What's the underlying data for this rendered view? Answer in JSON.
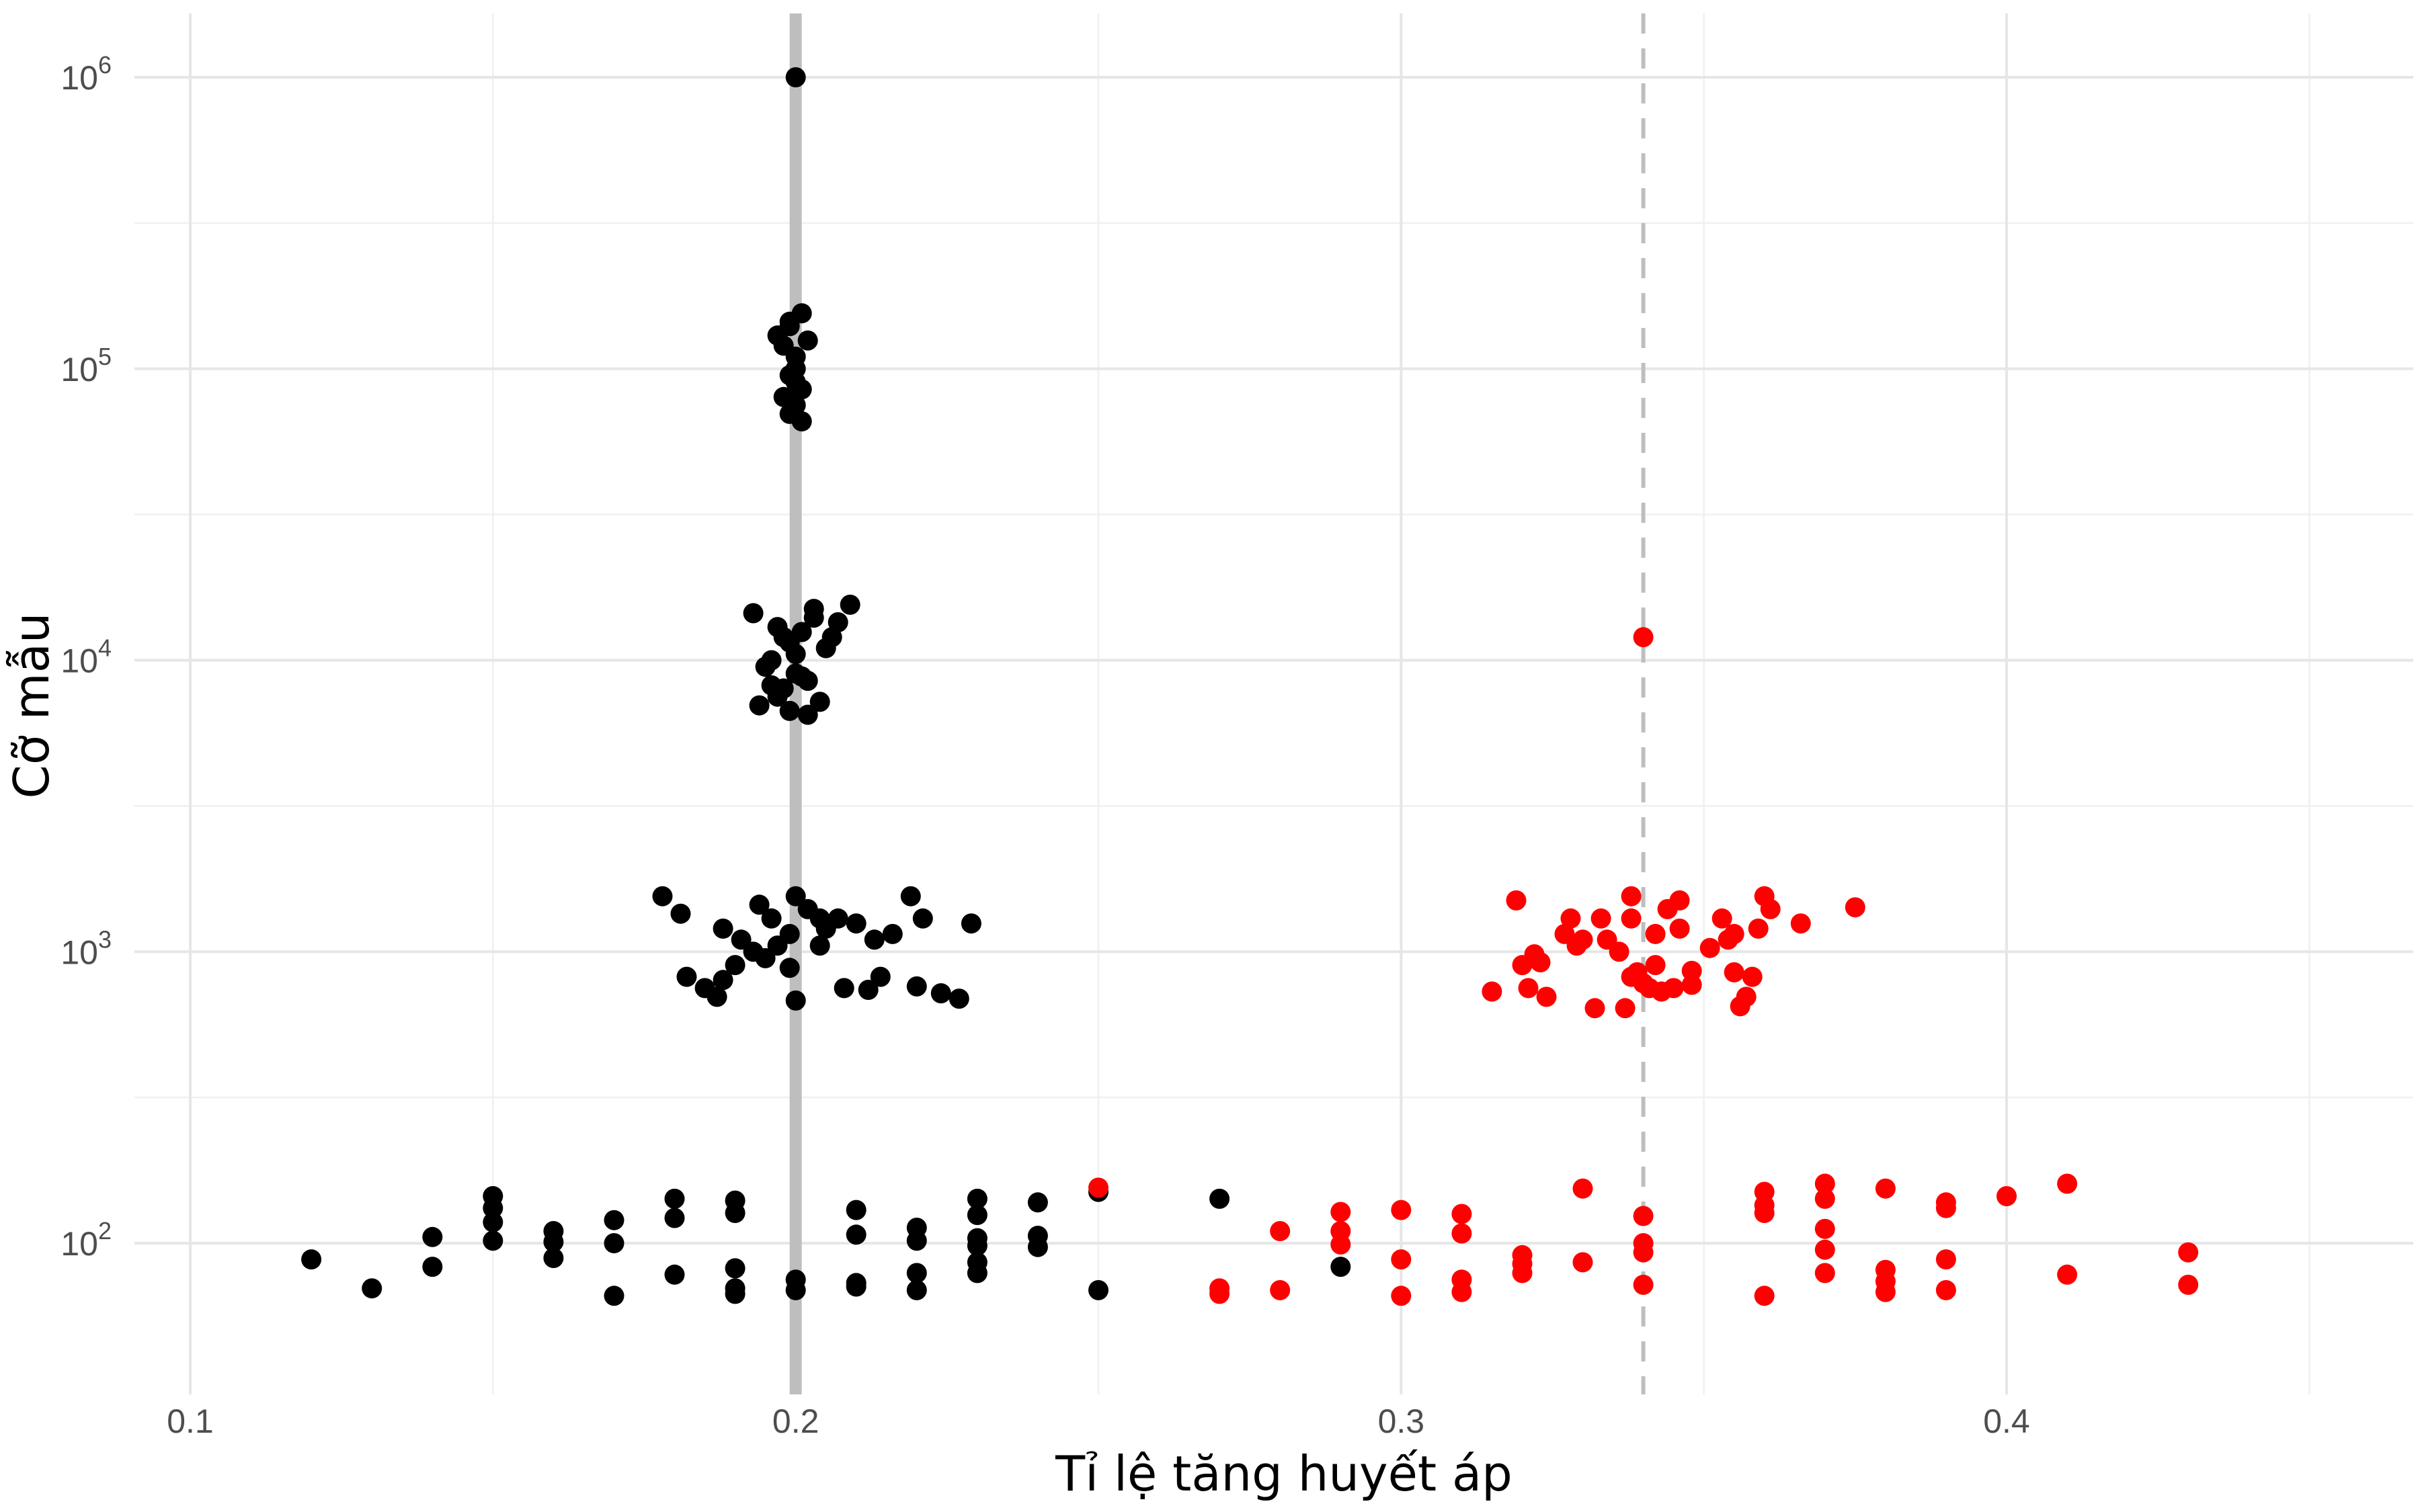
{
  "chart_data": {
    "type": "scatter",
    "title": "",
    "xlabel": "Tỉ lệ tăng huyết áp",
    "ylabel": "Cỡ mẫu",
    "x_range": [
      0.095,
      0.465
    ],
    "y_range_log10": [
      1.5,
      6.3
    ],
    "y_scale": "log10",
    "grid": true,
    "legend": "none",
    "x_ticks": [
      0.1,
      0.2,
      0.3,
      0.4
    ],
    "x_tick_labels": [
      "0.1",
      "0.2",
      "0.3",
      "0.4"
    ],
    "y_ticks": [
      {
        "base": "10",
        "exp": "2",
        "value": 100
      },
      {
        "base": "10",
        "exp": "3",
        "value": 1000
      },
      {
        "base": "10",
        "exp": "4",
        "value": 10000
      },
      {
        "base": "10",
        "exp": "5",
        "value": 100000
      },
      {
        "base": "10",
        "exp": "6",
        "value": 1000000
      }
    ],
    "reference_lines": [
      {
        "x": 0.2,
        "style": "solid",
        "color": "#bebebe"
      },
      {
        "x": 0.34,
        "style": "dashed",
        "color": "#bebebe"
      }
    ],
    "colors": {
      "black_series": "#000000",
      "red_series": "#ff0000"
    },
    "series": [
      {
        "color": "black",
        "points": [
          [
            0.2,
            1000000
          ],
          [
            0.197,
            130000
          ],
          [
            0.199,
            145000
          ],
          [
            0.201,
            155000
          ],
          [
            0.198,
            120000
          ],
          [
            0.2,
            110000
          ],
          [
            0.199,
            95000
          ],
          [
            0.2,
            90000
          ],
          [
            0.201,
            85000
          ],
          [
            0.198,
            80000
          ],
          [
            0.2,
            75000
          ],
          [
            0.199,
            70000
          ],
          [
            0.201,
            66000
          ],
          [
            0.2,
            100000
          ],
          [
            0.202,
            125000
          ],
          [
            0.199,
            140000
          ],
          [
            0.195,
            9500
          ],
          [
            0.198,
            12000
          ],
          [
            0.2,
            10500
          ],
          [
            0.203,
            14000
          ],
          [
            0.205,
            11000
          ],
          [
            0.193,
            14500
          ],
          [
            0.197,
            13000
          ],
          [
            0.201,
            12500
          ],
          [
            0.199,
            11500
          ],
          [
            0.196,
            10000
          ],
          [
            0.194,
            7000
          ],
          [
            0.197,
            7500
          ],
          [
            0.199,
            6700
          ],
          [
            0.202,
            6500
          ],
          [
            0.204,
            7200
          ],
          [
            0.2,
            9000
          ],
          [
            0.202,
            8500
          ],
          [
            0.198,
            8000
          ],
          [
            0.207,
            13500
          ],
          [
            0.209,
            15500
          ],
          [
            0.203,
            15000
          ],
          [
            0.206,
            12000
          ],
          [
            0.201,
            8800
          ],
          [
            0.196,
            8200
          ],
          [
            0.178,
            1550
          ],
          [
            0.181,
            1350
          ],
          [
            0.188,
            1200
          ],
          [
            0.191,
            1100
          ],
          [
            0.193,
            1000
          ],
          [
            0.195,
            950
          ],
          [
            0.197,
            1050
          ],
          [
            0.199,
            1150
          ],
          [
            0.2,
            1550
          ],
          [
            0.202,
            1400
          ],
          [
            0.204,
            1300
          ],
          [
            0.205,
            1200
          ],
          [
            0.207,
            1300
          ],
          [
            0.21,
            1250
          ],
          [
            0.213,
            1100
          ],
          [
            0.216,
            1150
          ],
          [
            0.219,
            1550
          ],
          [
            0.221,
            1300
          ],
          [
            0.229,
            1250
          ],
          [
            0.19,
            900
          ],
          [
            0.185,
            750
          ],
          [
            0.187,
            700
          ],
          [
            0.182,
            820
          ],
          [
            0.2,
            680
          ],
          [
            0.208,
            750
          ],
          [
            0.212,
            740
          ],
          [
            0.214,
            820
          ],
          [
            0.22,
            760
          ],
          [
            0.224,
            720
          ],
          [
            0.227,
            690
          ],
          [
            0.199,
            880
          ],
          [
            0.204,
            1050
          ],
          [
            0.194,
            1450
          ],
          [
            0.196,
            1300
          ],
          [
            0.188,
            800
          ],
          [
            0.12,
            88
          ],
          [
            0.13,
            70
          ],
          [
            0.14,
            105
          ],
          [
            0.14,
            83
          ],
          [
            0.15,
            145
          ],
          [
            0.15,
            132
          ],
          [
            0.15,
            118
          ],
          [
            0.15,
            102
          ],
          [
            0.16,
            110
          ],
          [
            0.16,
            101
          ],
          [
            0.16,
            89
          ],
          [
            0.17,
            120
          ],
          [
            0.17,
            100
          ],
          [
            0.17,
            66
          ],
          [
            0.18,
            142
          ],
          [
            0.18,
            122
          ],
          [
            0.18,
            78
          ],
          [
            0.19,
            140
          ],
          [
            0.19,
            127
          ],
          [
            0.19,
            82
          ],
          [
            0.19,
            70
          ],
          [
            0.19,
            67
          ],
          [
            0.2,
            75
          ],
          [
            0.2,
            69
          ],
          [
            0.21,
            130
          ],
          [
            0.21,
            107
          ],
          [
            0.21,
            73
          ],
          [
            0.21,
            71
          ],
          [
            0.22,
            113
          ],
          [
            0.22,
            102
          ],
          [
            0.22,
            79
          ],
          [
            0.22,
            69
          ],
          [
            0.23,
            142
          ],
          [
            0.23,
            125
          ],
          [
            0.23,
            104
          ],
          [
            0.23,
            98
          ],
          [
            0.23,
            86
          ],
          [
            0.23,
            79
          ],
          [
            0.24,
            138
          ],
          [
            0.24,
            106
          ],
          [
            0.24,
            97
          ],
          [
            0.25,
            150
          ],
          [
            0.25,
            69
          ],
          [
            0.27,
            142
          ],
          [
            0.29,
            83
          ]
        ]
      },
      {
        "color": "red",
        "points": [
          [
            0.34,
            12000
          ],
          [
            0.315,
            730
          ],
          [
            0.319,
            1500
          ],
          [
            0.32,
            900
          ],
          [
            0.321,
            750
          ],
          [
            0.322,
            980
          ],
          [
            0.323,
            920
          ],
          [
            0.324,
            700
          ],
          [
            0.327,
            1150
          ],
          [
            0.328,
            1300
          ],
          [
            0.33,
            1100
          ],
          [
            0.332,
            640
          ],
          [
            0.333,
            1300
          ],
          [
            0.334,
            1100
          ],
          [
            0.336,
            1000
          ],
          [
            0.337,
            640
          ],
          [
            0.338,
            1550
          ],
          [
            0.338,
            1300
          ],
          [
            0.339,
            850
          ],
          [
            0.34,
            780
          ],
          [
            0.341,
            750
          ],
          [
            0.342,
            900
          ],
          [
            0.342,
            1150
          ],
          [
            0.343,
            730
          ],
          [
            0.344,
            1400
          ],
          [
            0.345,
            750
          ],
          [
            0.346,
            1200
          ],
          [
            0.346,
            1500
          ],
          [
            0.348,
            860
          ],
          [
            0.348,
            770
          ],
          [
            0.351,
            1030
          ],
          [
            0.353,
            1300
          ],
          [
            0.355,
            1150
          ],
          [
            0.355,
            850
          ],
          [
            0.356,
            650
          ],
          [
            0.357,
            700
          ],
          [
            0.358,
            820
          ],
          [
            0.359,
            1200
          ],
          [
            0.36,
            1550
          ],
          [
            0.361,
            1400
          ],
          [
            0.366,
            1250
          ],
          [
            0.375,
            1420
          ],
          [
            0.338,
            820
          ],
          [
            0.329,
            1050
          ],
          [
            0.354,
            1100
          ],
          [
            0.25,
            155
          ],
          [
            0.27,
            70
          ],
          [
            0.27,
            67
          ],
          [
            0.28,
            110
          ],
          [
            0.28,
            69
          ],
          [
            0.29,
            128
          ],
          [
            0.29,
            110
          ],
          [
            0.29,
            99
          ],
          [
            0.3,
            130
          ],
          [
            0.3,
            88
          ],
          [
            0.3,
            66
          ],
          [
            0.31,
            126
          ],
          [
            0.31,
            108
          ],
          [
            0.31,
            75
          ],
          [
            0.31,
            68
          ],
          [
            0.32,
            91
          ],
          [
            0.32,
            85
          ],
          [
            0.32,
            79
          ],
          [
            0.33,
            154
          ],
          [
            0.33,
            86
          ],
          [
            0.34,
            124
          ],
          [
            0.34,
            100
          ],
          [
            0.34,
            93
          ],
          [
            0.34,
            72
          ],
          [
            0.36,
            150
          ],
          [
            0.36,
            135
          ],
          [
            0.36,
            127
          ],
          [
            0.36,
            66
          ],
          [
            0.37,
            160
          ],
          [
            0.37,
            142
          ],
          [
            0.37,
            112
          ],
          [
            0.37,
            95
          ],
          [
            0.37,
            79
          ],
          [
            0.38,
            154
          ],
          [
            0.38,
            81
          ],
          [
            0.38,
            74
          ],
          [
            0.38,
            68
          ],
          [
            0.39,
            138
          ],
          [
            0.39,
            132
          ],
          [
            0.39,
            88
          ],
          [
            0.39,
            69
          ],
          [
            0.4,
            145
          ],
          [
            0.41,
            160
          ],
          [
            0.41,
            78
          ],
          [
            0.43,
            93
          ],
          [
            0.43,
            72
          ]
        ]
      }
    ]
  }
}
